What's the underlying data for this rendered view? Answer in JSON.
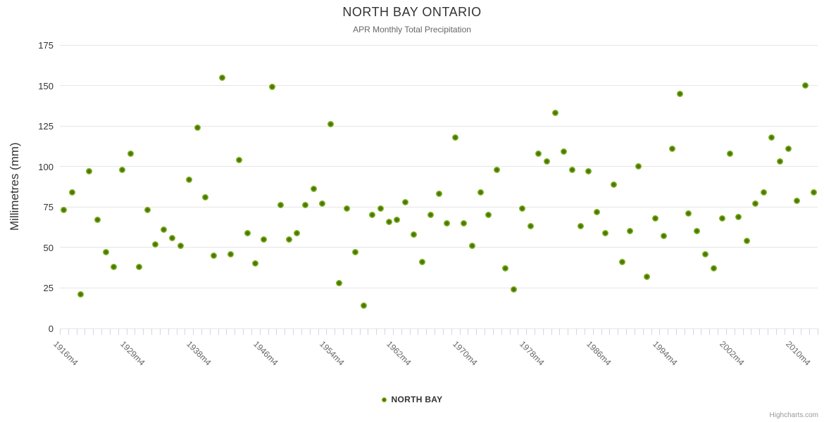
{
  "chart": {
    "title": "NORTH BAY ONTARIO",
    "subtitle": "APR Monthly Total Precipitation",
    "credits": "Highcharts.com"
  },
  "chart_data": {
    "type": "scatter",
    "title": "NORTH BAY ONTARIO",
    "subtitle": "APR Monthly Total Precipitation",
    "xlabel": "",
    "ylabel": "Millimetres (mm)",
    "ylim": [
      0,
      175
    ],
    "ytick_interval": 25,
    "grid": true,
    "legend_position": "bottom-center",
    "marker_color": "#7db51f",
    "marker_core_color": "#4a770e",
    "x_tick_labels": [
      {
        "i": 0,
        "label": "1916m4"
      },
      {
        "i": 8,
        "label": "1929m4"
      },
      {
        "i": 16,
        "label": "1938m4"
      },
      {
        "i": 24,
        "label": "1946m4"
      },
      {
        "i": 32,
        "label": "1954m4"
      },
      {
        "i": 40,
        "label": "1962m4"
      },
      {
        "i": 48,
        "label": "1970m4"
      },
      {
        "i": 56,
        "label": "1978m4"
      },
      {
        "i": 64,
        "label": "1986m4"
      },
      {
        "i": 72,
        "label": "1994m4"
      },
      {
        "i": 80,
        "label": "2002m4"
      },
      {
        "i": 88,
        "label": "2010m4"
      }
    ],
    "series": [
      {
        "name": "NORTH BAY",
        "values": [
          73,
          84,
          21,
          97,
          67,
          47,
          38,
          98,
          108,
          38,
          73,
          52,
          61,
          56,
          51,
          92,
          124,
          81,
          45,
          155,
          46,
          104,
          59,
          40,
          55,
          149,
          76,
          55,
          59,
          76,
          86,
          77,
          126,
          28,
          74,
          47,
          14,
          70,
          74,
          66,
          67,
          78,
          58,
          41,
          70,
          83,
          65,
          118,
          65,
          51,
          84,
          70,
          98,
          37,
          24,
          74,
          63,
          108,
          103,
          133,
          109,
          98,
          63,
          97,
          72,
          59,
          89,
          41,
          60,
          100,
          32,
          68,
          57,
          111,
          145,
          71,
          60,
          46,
          37,
          68,
          108,
          69,
          54,
          77,
          84,
          118,
          103,
          111,
          79,
          150,
          84
        ]
      }
    ]
  }
}
